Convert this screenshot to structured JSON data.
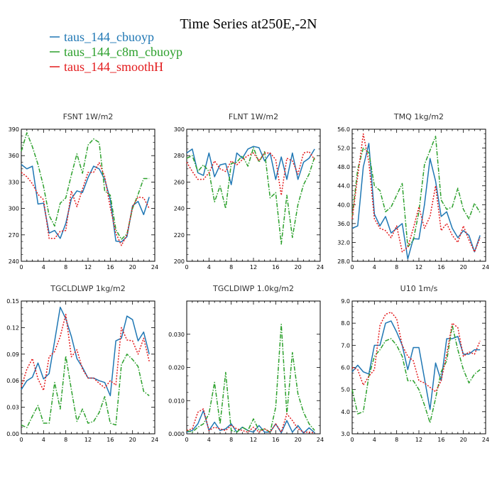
{
  "title": "Time Series at250E,-2N",
  "colors": {
    "cbuoyp": "#1f77b4",
    "c8m_cbuoyp": "#2ca02c",
    "smoothH": "#e31a1c"
  },
  "legend": [
    {
      "name": "taus_144_cbuoyp",
      "key": "cbuoyp"
    },
    {
      "name": "taus_144_c8m_cbuoyp",
      "key": "c8m_cbuoyp"
    },
    {
      "name": "taus_144_smoothH",
      "key": "smoothH"
    }
  ],
  "chart_data": [
    {
      "type": "line",
      "title": "FSNT   1W/m2",
      "xlim": [
        0,
        24
      ],
      "xticks": [
        0,
        4,
        8,
        12,
        16,
        20,
        24
      ],
      "ylim": [
        240,
        390
      ],
      "yticks": [
        240,
        270,
        300,
        330,
        360,
        390
      ],
      "ytick_labels": [
        "240",
        "270",
        "300",
        "330",
        "360",
        "390"
      ],
      "x": [
        0,
        1,
        2,
        3,
        4,
        5,
        6,
        7,
        8,
        9,
        10,
        11,
        12,
        13,
        14,
        15,
        16,
        17,
        18,
        19,
        20,
        21,
        22,
        23
      ],
      "series": [
        {
          "name": "taus_144_cbuoyp",
          "key": "cbuoyp",
          "values": [
            350,
            345,
            348,
            305,
            306,
            272,
            275,
            266,
            283,
            311,
            320,
            318,
            335,
            348,
            345,
            333,
            310,
            263,
            262,
            268,
            303,
            308,
            293,
            313
          ]
        },
        {
          "name": "taus_144_c8m_cbuoyp",
          "key": "c8m_cbuoyp",
          "values": [
            365,
            386,
            370,
            350,
            325,
            292,
            280,
            306,
            312,
            338,
            362,
            340,
            372,
            379,
            375,
            320,
            315,
            276,
            265,
            271,
            300,
            316,
            334,
            334
          ]
        },
        {
          "name": "taus_144_smoothH",
          "key": "smoothH",
          "values": [
            341,
            336,
            328,
            316,
            310,
            266,
            266,
            274,
            275,
            320,
            302,
            322,
            341,
            341,
            352,
            336,
            301,
            272,
            258,
            270,
            302,
            313,
            312,
            300
          ]
        }
      ]
    },
    {
      "type": "line",
      "title": "FLNT   1W/m2",
      "xlim": [
        0,
        24
      ],
      "xticks": [
        0,
        4,
        8,
        12,
        16,
        20,
        24
      ],
      "ylim": [
        200,
        300
      ],
      "yticks": [
        200,
        220,
        240,
        260,
        280,
        300
      ],
      "ytick_labels": [
        "200",
        "220",
        "240",
        "260",
        "280",
        "300"
      ],
      "x": [
        0,
        1,
        2,
        3,
        4,
        5,
        6,
        7,
        8,
        9,
        10,
        11,
        12,
        13,
        14,
        15,
        16,
        17,
        18,
        19,
        20,
        21,
        22,
        23
      ],
      "series": [
        {
          "name": "taus_144_cbuoyp",
          "key": "cbuoyp",
          "values": [
            282,
            285,
            267,
            265,
            282,
            264,
            273,
            274,
            258,
            282,
            278,
            285,
            287,
            286,
            276,
            282,
            262,
            279,
            262,
            282,
            262,
            275,
            278,
            285
          ]
        },
        {
          "name": "taus_144_c8m_cbuoyp",
          "key": "c8m_cbuoyp",
          "values": [
            278,
            280,
            268,
            273,
            268,
            245,
            257,
            240,
            274,
            275,
            280,
            272,
            286,
            275,
            283,
            248,
            252,
            213,
            250,
            218,
            243,
            258,
            266,
            279
          ]
        },
        {
          "name": "taus_144_smoothH",
          "key": "smoothH",
          "values": [
            275,
            268,
            262,
            262,
            267,
            276,
            270,
            268,
            276,
            273,
            277,
            280,
            282,
            276,
            282,
            282,
            277,
            250,
            278,
            276,
            266,
            282,
            283,
            277
          ]
        }
      ]
    },
    {
      "type": "line",
      "title": "TMQ   1kg/m2",
      "xlim": [
        0,
        24
      ],
      "xticks": [
        0,
        4,
        8,
        12,
        16,
        20,
        24
      ],
      "ylim": [
        28,
        56
      ],
      "yticks": [
        28,
        32,
        36,
        40,
        44,
        48,
        52,
        56
      ],
      "ytick_labels": [
        "28.0",
        "32.0",
        "36.0",
        "40.0",
        "44.0",
        "48.0",
        "52.0",
        "56.0"
      ],
      "x": [
        0,
        1,
        2,
        3,
        4,
        5,
        6,
        7,
        8,
        9,
        10,
        11,
        12,
        13,
        14,
        15,
        16,
        17,
        18,
        19,
        20,
        21,
        22,
        23
      ],
      "series": [
        {
          "name": "taus_144_cbuoyp",
          "key": "cbuoyp",
          "values": [
            35.0,
            35.5,
            48.0,
            53.0,
            38.0,
            35.5,
            37.5,
            34.0,
            35.0,
            36.0,
            28.5,
            32.8,
            32.7,
            40.0,
            49.8,
            45.0,
            37.5,
            38.5,
            35.0,
            33.0,
            34.5,
            33.5,
            30.0,
            33.5
          ]
        },
        {
          "name": "taus_144_c8m_cbuoyp",
          "key": "c8m_cbuoyp",
          "values": [
            37.5,
            47.5,
            52.0,
            51.0,
            44.0,
            43.0,
            38.5,
            39.5,
            42.0,
            44.5,
            31.0,
            32.5,
            38.5,
            48.5,
            51.5,
            54.5,
            41.0,
            39.0,
            39.5,
            43.5,
            39.0,
            37.0,
            40.3,
            38.3
          ]
        },
        {
          "name": "taus_144_smoothH",
          "key": "smoothH",
          "values": [
            37.0,
            46.0,
            55.0,
            49.0,
            37.0,
            35.0,
            34.5,
            33.0,
            35.5,
            30.0,
            31.0,
            35.0,
            39.5,
            35.0,
            37.5,
            44.0,
            34.5,
            36.0,
            33.5,
            32.0,
            35.5,
            32.5,
            30.0,
            33.0
          ]
        }
      ]
    },
    {
      "type": "line",
      "title": "TGCLDLWP   1kg/m2",
      "xlim": [
        0,
        24
      ],
      "xticks": [
        0,
        4,
        8,
        12,
        16,
        20,
        24
      ],
      "ylim": [
        0,
        0.15
      ],
      "yticks": [
        0,
        0.03,
        0.06,
        0.09,
        0.12,
        0.15
      ],
      "ytick_labels": [
        "0.00",
        "0.03",
        "0.06",
        "0.09",
        "0.12",
        "0.15"
      ],
      "x": [
        0,
        1,
        2,
        3,
        4,
        5,
        6,
        7,
        8,
        9,
        10,
        11,
        12,
        13,
        14,
        15,
        16,
        17,
        18,
        19,
        20,
        21,
        22,
        23
      ],
      "series": [
        {
          "name": "taus_144_cbuoyp",
          "key": "cbuoyp",
          "values": [
            0.05,
            0.06,
            0.064,
            0.08,
            0.062,
            0.068,
            0.105,
            0.143,
            0.13,
            0.11,
            0.085,
            0.075,
            0.063,
            0.063,
            0.06,
            0.058,
            0.043,
            0.105,
            0.108,
            0.133,
            0.129,
            0.105,
            0.115,
            0.09
          ]
        },
        {
          "name": "taus_144_c8m_cbuoyp",
          "key": "c8m_cbuoyp",
          "values": [
            0.01,
            0.007,
            0.02,
            0.032,
            0.012,
            0.012,
            0.058,
            0.028,
            0.088,
            0.05,
            0.014,
            0.028,
            0.012,
            0.014,
            0.024,
            0.042,
            0.012,
            0.01,
            0.078,
            0.09,
            0.084,
            0.076,
            0.048,
            0.043
          ]
        },
        {
          "name": "taus_144_smoothH",
          "key": "smoothH",
          "values": [
            0.053,
            0.073,
            0.085,
            0.062,
            0.049,
            0.087,
            0.093,
            0.11,
            0.135,
            0.087,
            0.095,
            0.073,
            0.063,
            0.063,
            0.057,
            0.052,
            0.06,
            0.055,
            0.12,
            0.106,
            0.105,
            0.09,
            0.108,
            0.082
          ]
        }
      ]
    },
    {
      "type": "line",
      "title": "TGCLDIWP   1.0kg/m2",
      "xlim": [
        0,
        24
      ],
      "xticks": [
        0,
        4,
        8,
        12,
        16,
        20,
        24
      ],
      "ylim": [
        0,
        0.04
      ],
      "yticks": [
        0,
        0.01,
        0.02,
        0.03
      ],
      "ytick_labels": [
        "0.000",
        "0.010",
        "0.020",
        "0.030"
      ],
      "x": [
        0,
        1,
        2,
        3,
        4,
        5,
        6,
        7,
        8,
        9,
        10,
        11,
        12,
        13,
        14,
        15,
        16,
        17,
        18,
        19,
        20,
        21,
        22,
        23
      ],
      "series": [
        {
          "name": "taus_144_cbuoyp",
          "key": "cbuoyp",
          "values": [
            0.0005,
            0.001,
            0.003,
            0.007,
            0.001,
            0.0035,
            0.001,
            0.0015,
            0.003,
            0.0005,
            0.002,
            0.001,
            0.0005,
            0.0025,
            0.0005,
            0.0005,
            0.003,
            0.0003,
            0.004,
            0.0005,
            0.0025,
            0.0002,
            0.0018,
            0.0003
          ]
        },
        {
          "name": "taus_144_c8m_cbuoyp",
          "key": "c8m_cbuoyp",
          "values": [
            0.001,
            0.0005,
            0.002,
            0.003,
            0.006,
            0.0155,
            0.003,
            0.0185,
            0.001,
            0.0005,
            0.002,
            0.001,
            0.0045,
            0.001,
            0.0015,
            0.0005,
            0.008,
            0.033,
            0.006,
            0.0245,
            0.012,
            0.0065,
            0.003,
            0.001
          ]
        },
        {
          "name": "taus_144_smoothH",
          "key": "smoothH",
          "values": [
            0.001,
            0.0015,
            0.0065,
            0.0075,
            0.001,
            0.002,
            0.0015,
            0.001,
            0.0025,
            0.0015,
            0.001,
            0.0005,
            0.002,
            0.0005,
            0.0015,
            0.0005,
            0.003,
            0.0005,
            0.006,
            0.004,
            0.0015,
            0.0005,
            0.0005,
            0.0003
          ]
        }
      ]
    },
    {
      "type": "line",
      "title": "U10   1m/s",
      "xlim": [
        0,
        24
      ],
      "xticks": [
        0,
        4,
        8,
        12,
        16,
        20,
        24
      ],
      "ylim": [
        3,
        9
      ],
      "yticks": [
        3,
        4,
        5,
        6,
        7,
        8,
        9
      ],
      "ytick_labels": [
        "3.0",
        "4.0",
        "5.0",
        "6.0",
        "7.0",
        "8.0",
        "9.0"
      ],
      "x": [
        0,
        1,
        2,
        3,
        4,
        5,
        6,
        7,
        8,
        9,
        10,
        11,
        12,
        13,
        14,
        15,
        16,
        17,
        18,
        19,
        20,
        21,
        22,
        23
      ],
      "series": [
        {
          "name": "taus_144_cbuoyp",
          "key": "cbuoyp",
          "values": [
            5.8,
            6.1,
            5.8,
            5.7,
            7.0,
            7.0,
            8.0,
            8.1,
            7.6,
            7.0,
            5.9,
            6.9,
            6.9,
            5.5,
            4.1,
            6.2,
            5.4,
            7.3,
            7.3,
            7.4,
            6.6,
            6.6,
            6.8,
            6.8
          ]
        },
        {
          "name": "taus_144_c8m_cbuoyp",
          "key": "c8m_cbuoyp",
          "values": [
            5.0,
            3.9,
            4.0,
            5.6,
            6.5,
            6.8,
            7.2,
            7.3,
            7.0,
            6.5,
            5.4,
            5.4,
            5.0,
            4.3,
            3.5,
            4.6,
            5.8,
            6.3,
            7.9,
            6.8,
            5.9,
            5.3,
            5.7,
            5.9
          ]
        },
        {
          "name": "taus_144_smoothH",
          "key": "smoothH",
          "values": [
            6.0,
            5.9,
            5.2,
            5.6,
            5.9,
            7.9,
            8.4,
            8.5,
            8.2,
            7.0,
            6.5,
            6.3,
            5.4,
            5.3,
            5.1,
            4.9,
            5.4,
            6.6,
            8.0,
            7.8,
            6.5,
            6.7,
            6.6,
            7.2
          ]
        }
      ]
    }
  ]
}
